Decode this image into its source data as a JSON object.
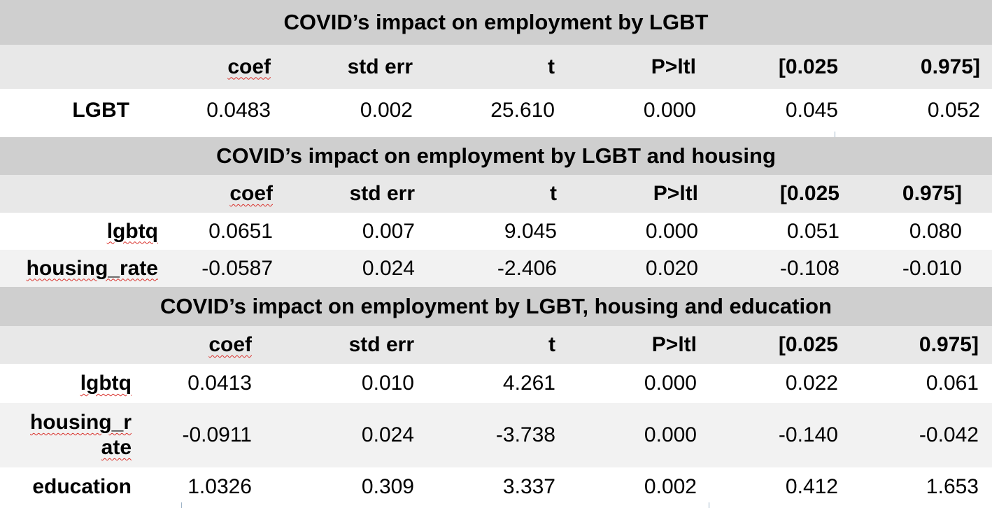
{
  "table1": {
    "title": "COVID’s impact on employment by LGBT",
    "headers": [
      "coef",
      "std err",
      "t",
      "P>ltl",
      "[0.025",
      "0.975]"
    ],
    "rows": [
      {
        "label": "LGBT",
        "values": [
          "0.0483",
          "0.002",
          "25.610",
          "0.000",
          "0.045",
          "0.052"
        ]
      }
    ]
  },
  "table2": {
    "title": "COVID’s impact on employment by LGBT and housing",
    "headers": [
      "coef",
      "std err",
      "t",
      "P>ltl",
      "[0.025",
      "0.975]"
    ],
    "rows": [
      {
        "label": "lgbtq",
        "values": [
          "0.0651",
          "0.007",
          "9.045",
          "0.000",
          "0.051",
          "0.080"
        ]
      },
      {
        "label": "housing_rate",
        "values": [
          "-0.0587",
          "0.024",
          "-2.406",
          "0.020",
          "-0.108",
          "-0.010"
        ]
      }
    ]
  },
  "table3": {
    "title": "COVID’s impact on employment by LGBT, housing and education",
    "headers": [
      "coef",
      "std err",
      "t",
      "P>ltl",
      "[0.025",
      "0.975]"
    ],
    "rows": [
      {
        "label": "lgbtq",
        "values": [
          "0.0413",
          "0.010",
          "4.261",
          "0.000",
          "0.022",
          "0.061"
        ]
      },
      {
        "label_line1": "housing_r",
        "label_line2": "ate",
        "values": [
          "-0.0911",
          "0.024",
          "-3.738",
          "0.000",
          "-0.140",
          "-0.042"
        ]
      },
      {
        "label": "education",
        "values": [
          "1.0326",
          "0.309",
          "3.337",
          "0.002",
          "0.412",
          "1.653"
        ]
      }
    ]
  }
}
